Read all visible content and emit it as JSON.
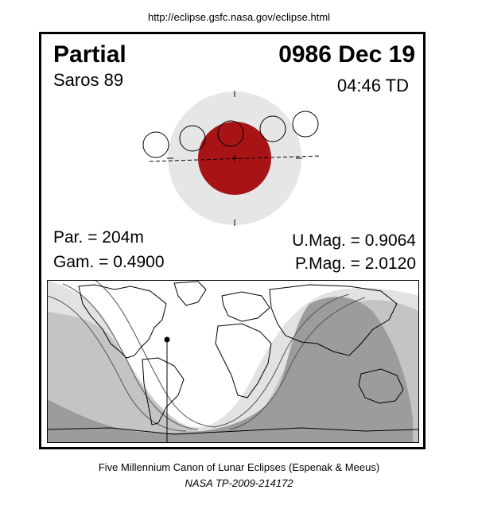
{
  "header": {
    "url": "http://eclipse.gsfc.nasa.gov/eclipse.html"
  },
  "eclipse": {
    "type": "Partial",
    "date": "0986 Dec 19",
    "saros": "Saros  89",
    "time": "04:46 TD",
    "parameters": {
      "par": "Par. = 204m",
      "gam": "Gam. = 0.4900",
      "umag": "U.Mag. = 0.9064",
      "pmag": "P.Mag. = 2.0120"
    }
  },
  "colors": {
    "umbra": "#a81416",
    "penumbra": "#e6e6e6",
    "night_full": "#9c9c9c",
    "night_partial": "#c4c4c4",
    "night_light": "#e2e2e2"
  },
  "footer": {
    "credit": "Five Millennium Canon of Lunar Eclipses (Espenak & Meeus)",
    "publication": "NASA TP-2009-214172"
  }
}
